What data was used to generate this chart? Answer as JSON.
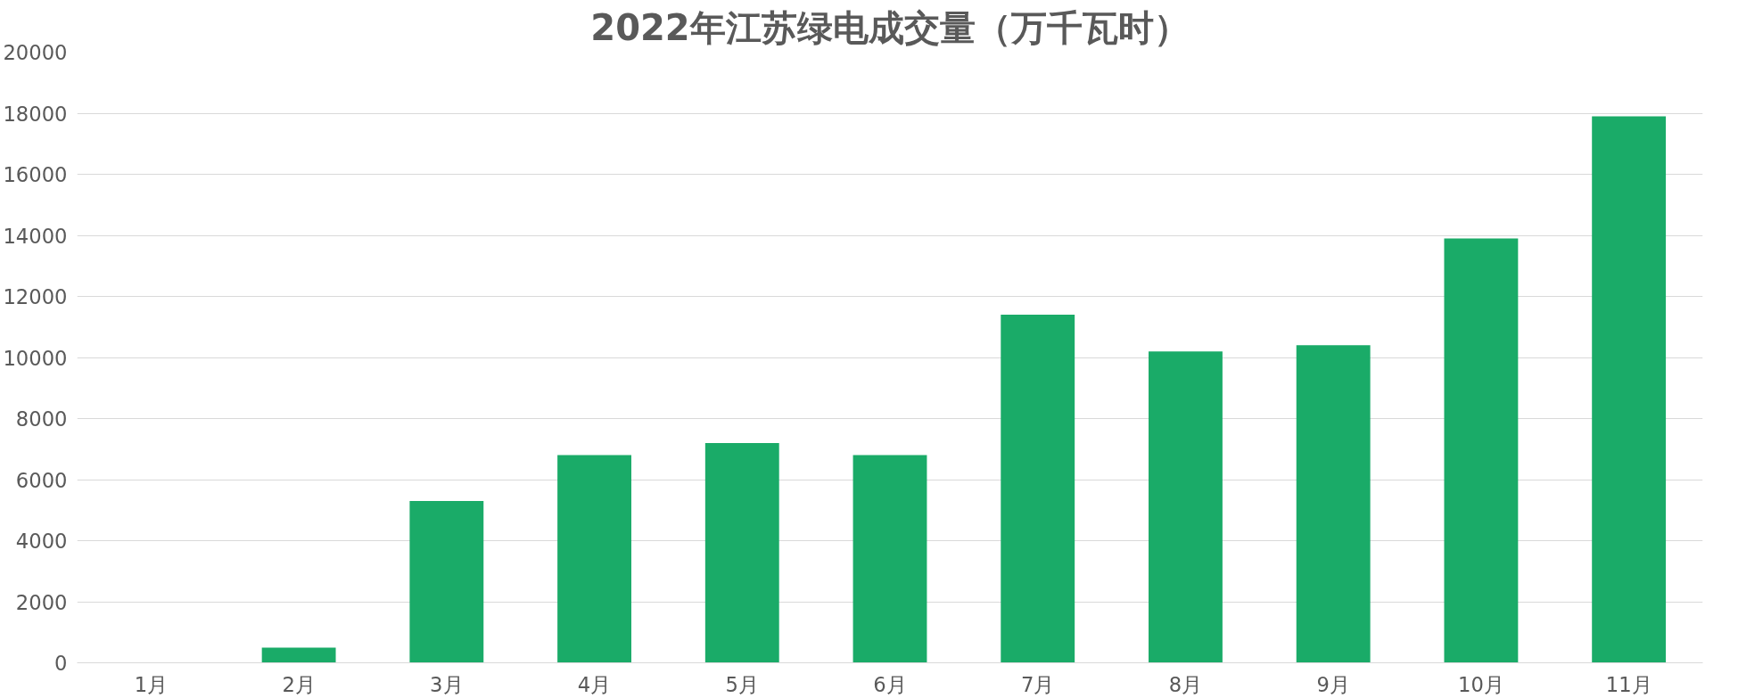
{
  "chart_data": {
    "type": "bar",
    "title": "2022年江苏绿电成交量（万千瓦时）",
    "categories": [
      "1月",
      "2月",
      "3月",
      "4月",
      "5月",
      "6月",
      "7月",
      "8月",
      "9月",
      "10月",
      "11月"
    ],
    "values": [
      0,
      500,
      5300,
      6800,
      7200,
      6800,
      11400,
      10200,
      10400,
      13900,
      17900
    ],
    "color": "#1aab68",
    "ylim": [
      0,
      20000
    ],
    "yticks": [
      0,
      2000,
      4000,
      6000,
      8000,
      10000,
      12000,
      14000,
      16000,
      18000,
      20000
    ],
    "grid": "y"
  }
}
